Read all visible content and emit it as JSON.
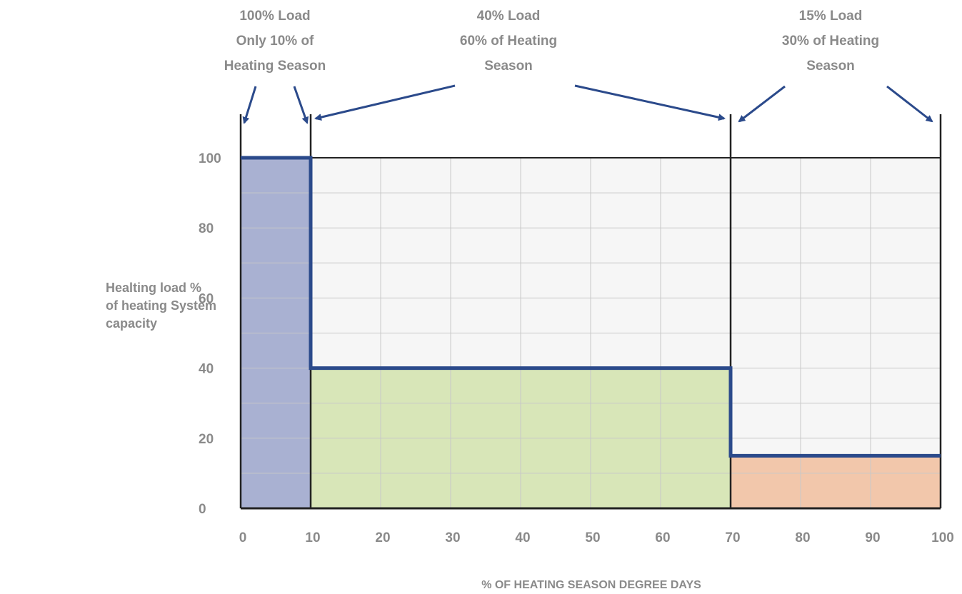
{
  "chart_data": {
    "type": "area",
    "xlabel": "% OF HEATING SEASON DEGREE DAYS",
    "ylabel_lines": [
      "Healting load %",
      "of heating System",
      "capacity"
    ],
    "x_ticks": [
      0,
      10,
      20,
      30,
      40,
      50,
      60,
      70,
      80,
      90,
      100
    ],
    "y_ticks": [
      0,
      20,
      40,
      60,
      80,
      100
    ],
    "xlim": [
      0,
      100
    ],
    "ylim": [
      0,
      100
    ],
    "grid": true,
    "segments": [
      {
        "x_start": 0,
        "x_end": 10,
        "load": 100,
        "color": "#a9b1d2"
      },
      {
        "x_start": 10,
        "x_end": 70,
        "load": 40,
        "color": "#d8e6b8"
      },
      {
        "x_start": 70,
        "x_end": 100,
        "load": 15,
        "color": "#f2c7ab"
      }
    ],
    "step_line_color": "#2b4a8b",
    "annotations": [
      {
        "lines": [
          "100% Load",
          "Only 10% of",
          "Heating Season"
        ],
        "x_from": 0,
        "x_to": 10
      },
      {
        "lines": [
          "40% Load",
          "60% of Heating",
          "Season"
        ],
        "x_from": 10,
        "x_to": 70
      },
      {
        "lines": [
          "15% Load",
          "30% of Heating",
          "Season"
        ],
        "x_from": 70,
        "x_to": 100
      }
    ]
  }
}
